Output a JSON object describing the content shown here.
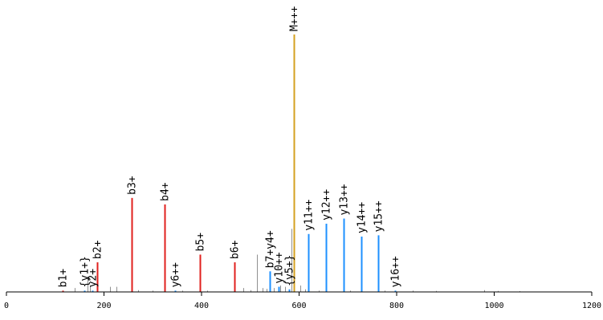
{
  "chart_data": {
    "type": "bar",
    "subtype": "mass-spectrum",
    "title": "",
    "xlabel": "",
    "ylabel": "",
    "xlim": [
      0,
      1200
    ],
    "ylim": [
      0,
      100
    ],
    "grid": false,
    "legend": "none",
    "x_ticks": [
      0,
      200,
      400,
      600,
      800,
      1000,
      1200
    ],
    "colors": {
      "b_ion": "#e0201e",
      "y_ion": "#1e90ff",
      "precursor": "#d4a020",
      "unassigned": "#909090",
      "axis": "#000000"
    },
    "series": [
      {
        "ion_type": "b",
        "color": "#e0201e",
        "peaks": [
          {
            "label": "b1+",
            "mz": 116,
            "intensity": 0.5
          },
          {
            "label": "b2+",
            "mz": 186,
            "intensity": 11.5
          },
          {
            "label": "b3+",
            "mz": 257,
            "intensity": 36.5
          },
          {
            "label": "b4+",
            "mz": 325,
            "intensity": 34.0
          },
          {
            "label": "b5+",
            "mz": 396,
            "intensity": 14.5
          },
          {
            "label": "b6+",
            "mz": 468,
            "intensity": 11.5
          }
        ]
      },
      {
        "ion_type": "y",
        "color": "#1e90ff",
        "peaks": [
          {
            "label": "{y1+}",
            "mz": 160,
            "intensity": 0.5
          },
          {
            "label": "y2+",
            "mz": 176,
            "intensity": 0.5
          },
          {
            "label": "y6++",
            "mz": 345,
            "intensity": 0.5
          },
          {
            "label": "b7+y4+",
            "mz": 540,
            "intensity": 8.0
          },
          {
            "label": "y10++",
            "mz": 558,
            "intensity": 2.0
          },
          {
            "label": "{y5+}",
            "mz": 580,
            "intensity": 1.0
          },
          {
            "label": "y11++",
            "mz": 619,
            "intensity": 22.5
          },
          {
            "label": "y12++",
            "mz": 655,
            "intensity": 26.5
          },
          {
            "label": "y13++",
            "mz": 691,
            "intensity": 28.5
          },
          {
            "label": "y14++",
            "mz": 727,
            "intensity": 21.5
          },
          {
            "label": "y15++",
            "mz": 762,
            "intensity": 22.0
          },
          {
            "label": "y16++",
            "mz": 797,
            "intensity": 0.5
          }
        ]
      },
      {
        "ion_type": "precursor",
        "color": "#d4a020",
        "peaks": [
          {
            "label": "M+++",
            "mz": 590,
            "intensity": 100
          }
        ]
      },
      {
        "ion_type": "unassigned",
        "color": "#909090",
        "peaks": [
          {
            "mz": 140,
            "intensity": 1.5
          },
          {
            "mz": 166,
            "intensity": 6.0
          },
          {
            "mz": 172,
            "intensity": 2.5
          },
          {
            "mz": 212,
            "intensity": 2.0
          },
          {
            "mz": 226,
            "intensity": 2.0
          },
          {
            "mz": 270,
            "intensity": 0.7
          },
          {
            "mz": 300,
            "intensity": 0.5
          },
          {
            "mz": 360,
            "intensity": 0.5
          },
          {
            "mz": 412,
            "intensity": 0.5
          },
          {
            "mz": 485,
            "intensity": 1.5
          },
          {
            "mz": 500,
            "intensity": 0.7
          },
          {
            "mz": 513,
            "intensity": 14.5
          },
          {
            "mz": 525,
            "intensity": 1.5
          },
          {
            "mz": 533,
            "intensity": 1.2
          },
          {
            "mz": 548,
            "intensity": 1.5
          },
          {
            "mz": 562,
            "intensity": 2.5
          },
          {
            "mz": 571,
            "intensity": 2.0
          },
          {
            "mz": 584,
            "intensity": 24.5
          },
          {
            "mz": 603,
            "intensity": 2.5
          },
          {
            "mz": 612,
            "intensity": 1.0
          },
          {
            "mz": 640,
            "intensity": 0.5
          },
          {
            "mz": 705,
            "intensity": 0.5
          },
          {
            "mz": 775,
            "intensity": 0.5
          },
          {
            "mz": 833,
            "intensity": 0.5
          },
          {
            "mz": 880,
            "intensity": 0.4
          },
          {
            "mz": 980,
            "intensity": 0.7
          },
          {
            "mz": 1008,
            "intensity": 0.4
          },
          {
            "mz": 1052,
            "intensity": 0.3
          }
        ]
      }
    ]
  }
}
